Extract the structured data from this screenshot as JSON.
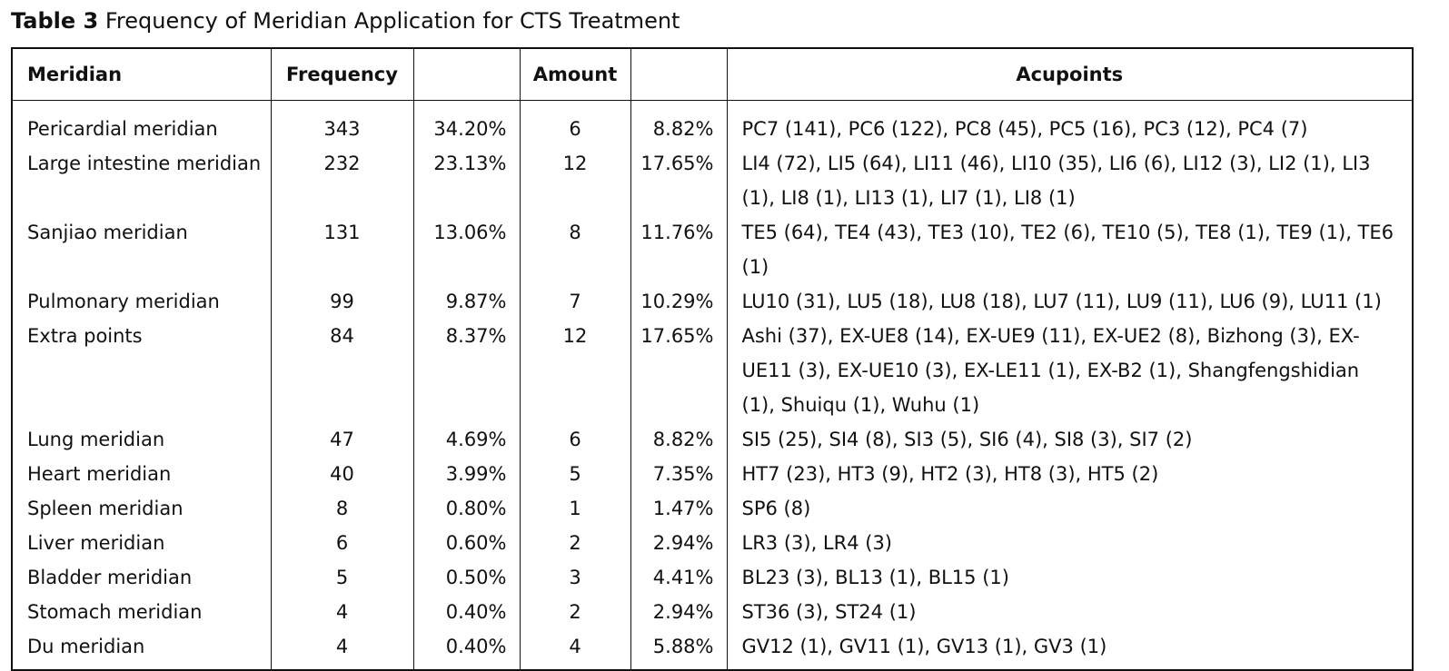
{
  "caption": {
    "label": "Table 3",
    "text": "Frequency of Meridian Application for CTS Treatment"
  },
  "table": {
    "headers": {
      "meridian": "Meridian",
      "frequency": "Frequency",
      "frequency_pct": "",
      "amount": "Amount",
      "amount_pct": "",
      "acupoints": "Acupoints"
    },
    "rows": [
      {
        "meridian": "Pericardial meridian",
        "frequency": "343",
        "frequency_pct": "34.20%",
        "amount": "6",
        "amount_pct": "8.82%",
        "acupoints": "PC7 (141), PC6 (122), PC8 (45), PC5 (16), PC3 (12), PC4 (7)"
      },
      {
        "meridian": "Large intestine meridian",
        "frequency": "232",
        "frequency_pct": "23.13%",
        "amount": "12",
        "amount_pct": "17.65%",
        "acupoints": "LI4 (72), LI5 (64), LI11 (46), LI10 (35), LI6 (6), LI12 (3), LI2 (1), LI3 (1), LI8 (1), LI13 (1), LI7 (1), LI8 (1)"
      },
      {
        "meridian": "Sanjiao meridian",
        "frequency": "131",
        "frequency_pct": "13.06%",
        "amount": "8",
        "amount_pct": "11.76%",
        "acupoints": "TE5 (64), TE4 (43), TE3 (10), TE2 (6), TE10 (5), TE8 (1), TE9 (1), TE6 (1)"
      },
      {
        "meridian": "Pulmonary meridian",
        "frequency": "99",
        "frequency_pct": "9.87%",
        "amount": "7",
        "amount_pct": "10.29%",
        "acupoints": "LU10 (31), LU5 (18), LU8 (18), LU7 (11), LU9 (11), LU6 (9), LU11 (1)"
      },
      {
        "meridian": "Extra points",
        "frequency": "84",
        "frequency_pct": "8.37%",
        "amount": "12",
        "amount_pct": "17.65%",
        "acupoints": "Ashi (37), EX-UE8 (14), EX-UE9 (11), EX-UE2 (8), Bizhong (3), EX-UE11 (3), EX-UE10 (3), EX-LE11 (1), EX-B2 (1), Shangfengshidian (1), Shuiqu (1), Wuhu (1)"
      },
      {
        "meridian": "Lung meridian",
        "frequency": "47",
        "frequency_pct": "4.69%",
        "amount": "6",
        "amount_pct": "8.82%",
        "acupoints": "SI5 (25), SI4 (8), SI3 (5), SI6 (4), SI8 (3), SI7 (2)"
      },
      {
        "meridian": "Heart meridian",
        "frequency": "40",
        "frequency_pct": "3.99%",
        "amount": "5",
        "amount_pct": "7.35%",
        "acupoints": "HT7 (23), HT3 (9), HT2 (3), HT8 (3), HT5 (2)"
      },
      {
        "meridian": "Spleen meridian",
        "frequency": "8",
        "frequency_pct": "0.80%",
        "amount": "1",
        "amount_pct": "1.47%",
        "acupoints": "SP6 (8)"
      },
      {
        "meridian": "Liver meridian",
        "frequency": "6",
        "frequency_pct": "0.60%",
        "amount": "2",
        "amount_pct": "2.94%",
        "acupoints": "LR3 (3), LR4 (3)"
      },
      {
        "meridian": "Bladder meridian",
        "frequency": "5",
        "frequency_pct": "0.50%",
        "amount": "3",
        "amount_pct": "4.41%",
        "acupoints": "BL23 (3), BL13 (1), BL15 (1)"
      },
      {
        "meridian": "Stomach meridian",
        "frequency": "4",
        "frequency_pct": "0.40%",
        "amount": "2",
        "amount_pct": "2.94%",
        "acupoints": "ST36 (3), ST24 (1)"
      },
      {
        "meridian": "Du meridian",
        "frequency": "4",
        "frequency_pct": "0.40%",
        "amount": "4",
        "amount_pct": "5.88%",
        "acupoints": "GV12 (1), GV11 (1), GV13 (1), GV3 (1)"
      }
    ]
  }
}
